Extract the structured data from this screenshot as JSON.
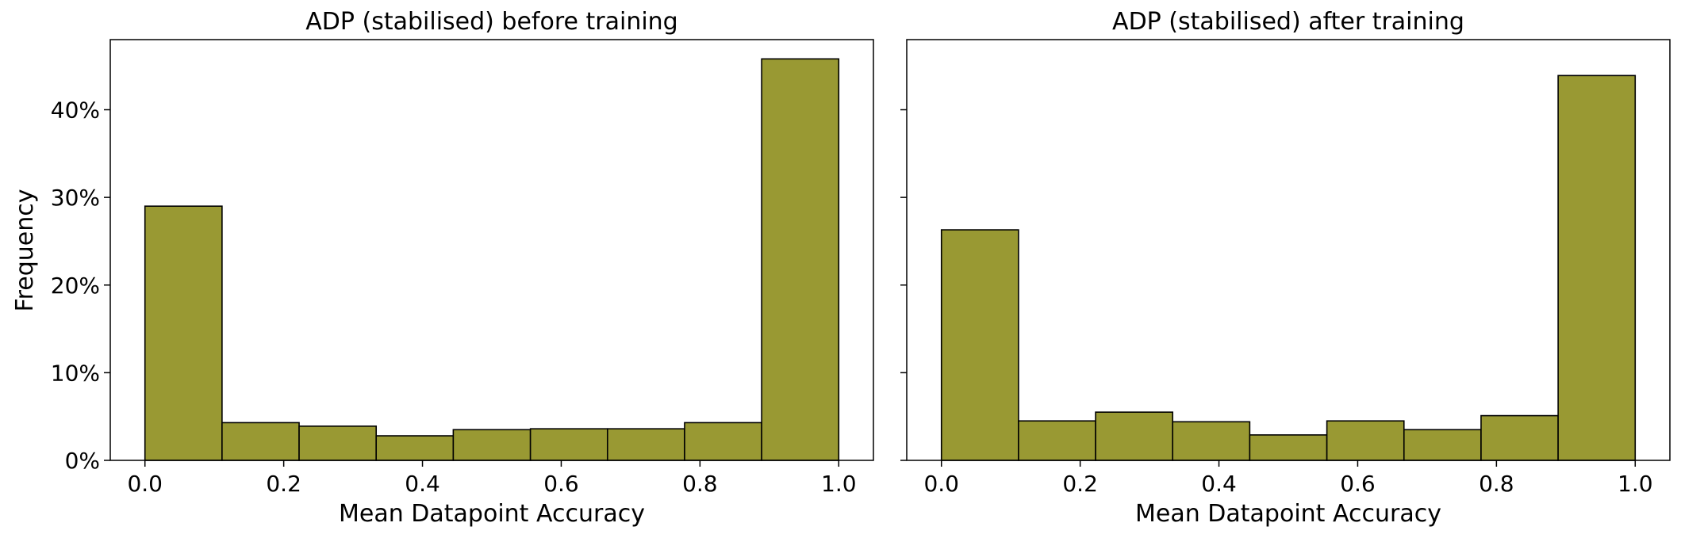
{
  "chart_data": [
    {
      "type": "bar",
      "title": "ADP (stabilised) before training",
      "xlabel": "Mean Datapoint Accuracy",
      "ylabel": "Frequency",
      "bin_edges": [
        0.0,
        0.1111,
        0.2222,
        0.3333,
        0.4444,
        0.5556,
        0.6667,
        0.7778,
        0.8889,
        1.0
      ],
      "values": [
        29.0,
        4.3,
        3.9,
        2.8,
        3.5,
        3.6,
        3.6,
        4.3,
        45.8
      ],
      "xlim": [
        -0.05,
        1.05
      ],
      "ylim": [
        0,
        48
      ],
      "xticks": [
        0.0,
        0.2,
        0.4,
        0.6,
        0.8,
        1.0
      ],
      "xtick_labels": [
        "0.0",
        "0.2",
        "0.4",
        "0.6",
        "0.8",
        "1.0"
      ],
      "yticks": [
        0,
        10,
        20,
        30,
        40
      ],
      "ytick_labels": [
        "0%",
        "10%",
        "20%",
        "30%",
        "40%"
      ],
      "show_ytick_labels": true,
      "bar_color": "#999933",
      "edge_color": "#000000"
    },
    {
      "type": "bar",
      "title": "ADP (stabilised) after training",
      "xlabel": "Mean Datapoint Accuracy",
      "ylabel": "",
      "bin_edges": [
        0.0,
        0.1111,
        0.2222,
        0.3333,
        0.4444,
        0.5556,
        0.6667,
        0.7778,
        0.8889,
        1.0
      ],
      "values": [
        26.3,
        4.5,
        5.5,
        4.4,
        2.9,
        4.5,
        3.5,
        5.1,
        43.9
      ],
      "xlim": [
        -0.05,
        1.05
      ],
      "ylim": [
        0,
        48
      ],
      "xticks": [
        0.0,
        0.2,
        0.4,
        0.6,
        0.8,
        1.0
      ],
      "xtick_labels": [
        "0.0",
        "0.2",
        "0.4",
        "0.6",
        "0.8",
        "1.0"
      ],
      "yticks": [
        0,
        10,
        20,
        30,
        40
      ],
      "ytick_labels": [
        "0%",
        "10%",
        "20%",
        "30%",
        "40%"
      ],
      "show_ytick_labels": false,
      "bar_color": "#999933",
      "edge_color": "#000000"
    }
  ]
}
